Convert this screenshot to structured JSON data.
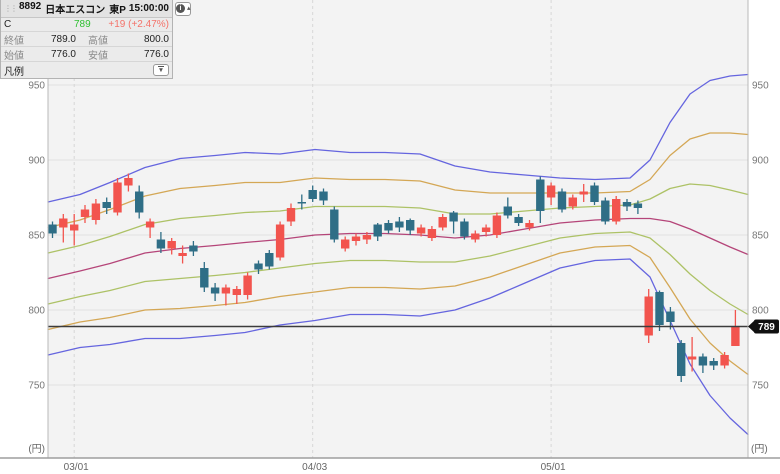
{
  "panel": {
    "drag_handle_icon": "⋮⋮",
    "code": "8892",
    "name": "日本エスコン",
    "market": "東P",
    "time": "15:00:00",
    "info_icon": "i",
    "collapse_icon": "▴",
    "series_label": "C",
    "current_price_text": "789",
    "change_text": "+19 (+2.47%)",
    "quote_rows": [
      {
        "label1": "終値",
        "value1": "789.0",
        "label2": "高値",
        "value2": "800.0"
      },
      {
        "label1": "始値",
        "value1": "776.0",
        "label2": "安値",
        "value2": "776.0"
      }
    ],
    "legend_label": "凡例",
    "legend_expand_icon": "▼"
  },
  "colors": {
    "up_candle": "#f2544e",
    "down_candle": "#2f6e86",
    "band_outer": "#5d5ddd",
    "band_mid": "#d2a24c",
    "band_inner": "#a9bf5e",
    "band_center": "#b13b72",
    "price_green": "#2fc032",
    "change_red": "#f4736a",
    "price_line": "#3c3c3c",
    "badge_bg": "#111111",
    "badge_text": "#ffffff",
    "plot_bg": "#f3f3f3",
    "grid": "#e0e0e0"
  },
  "chart_data": {
    "type": "candlestick",
    "overlay": "bollinger-bands +3/+2/+1/-1/-2/-3 sigma with center SMA",
    "y_unit": "(円)",
    "y_ticks": [
      950,
      900,
      850,
      800,
      750
    ],
    "ylim": [
      710,
      965
    ],
    "x_ticks": [
      {
        "index": 2,
        "label": "03/01"
      },
      {
        "index": 24,
        "label": "04/03"
      },
      {
        "index": 46,
        "label": "05/01"
      }
    ],
    "current_price": 789,
    "candle_format": "open,high,low,close",
    "candles_ohlc": [
      [
        857,
        859,
        848,
        851
      ],
      [
        855,
        864,
        845,
        861
      ],
      [
        853,
        864,
        843,
        857
      ],
      [
        862,
        870,
        858,
        867
      ],
      [
        860,
        874,
        857,
        871
      ],
      [
        872,
        875,
        864,
        868
      ],
      [
        865,
        888,
        863,
        885
      ],
      [
        883,
        891,
        879,
        888
      ],
      [
        879,
        883,
        861,
        865
      ],
      [
        855,
        861,
        848,
        859
      ],
      [
        847,
        852,
        838,
        841
      ],
      [
        841,
        848,
        837,
        846
      ],
      [
        836,
        843,
        831,
        838
      ],
      [
        843,
        846,
        836,
        839
      ],
      [
        828,
        832,
        812,
        815
      ],
      [
        815,
        818,
        806,
        811
      ],
      [
        811,
        817,
        803,
        815
      ],
      [
        810,
        816,
        804,
        814
      ],
      [
        810,
        825,
        807,
        823
      ],
      [
        831,
        833,
        824,
        827
      ],
      [
        838,
        840,
        827,
        829
      ],
      [
        835,
        859,
        833,
        857
      ],
      [
        859,
        871,
        856,
        868
      ],
      [
        872,
        877,
        867,
        871
      ],
      [
        880,
        883,
        872,
        874
      ],
      [
        879,
        881,
        870,
        873
      ],
      [
        867,
        869,
        845,
        847
      ],
      [
        841,
        849,
        839,
        847
      ],
      [
        846,
        851,
        843,
        849
      ],
      [
        847,
        852,
        844,
        850
      ],
      [
        857,
        858,
        846,
        849
      ],
      [
        858,
        860,
        851,
        853
      ],
      [
        859,
        862,
        852,
        855
      ],
      [
        860,
        861,
        850,
        853
      ],
      [
        851,
        857,
        849,
        855
      ],
      [
        848,
        856,
        846,
        854
      ],
      [
        855,
        864,
        853,
        862
      ],
      [
        865,
        866,
        851,
        859
      ],
      [
        859,
        861,
        847,
        849
      ],
      [
        847,
        853,
        845,
        851
      ],
      [
        852,
        857,
        849,
        855
      ],
      [
        850,
        865,
        848,
        863
      ],
      [
        869,
        875,
        861,
        863
      ],
      [
        862,
        864,
        856,
        858
      ],
      [
        855,
        860,
        853,
        858
      ],
      [
        887,
        889,
        858,
        866
      ],
      [
        875,
        885,
        870,
        883
      ],
      [
        879,
        881,
        865,
        867
      ],
      [
        869,
        877,
        867,
        875
      ],
      [
        877,
        884,
        872,
        879
      ],
      [
        883,
        885,
        870,
        872
      ],
      [
        873,
        875,
        857,
        859
      ],
      [
        859,
        876,
        857,
        874
      ],
      [
        872,
        874,
        866,
        869
      ],
      [
        871,
        873,
        864,
        868
      ],
      [
        783,
        814,
        778,
        809
      ],
      [
        812,
        813,
        786,
        790
      ],
      [
        799,
        802,
        787,
        792
      ],
      [
        778,
        780,
        752,
        756
      ],
      [
        767,
        782,
        759,
        769
      ],
      [
        769,
        771,
        758,
        763
      ],
      [
        766,
        768,
        760,
        763
      ],
      [
        763,
        772,
        761,
        770
      ],
      [
        776,
        800,
        776,
        789
      ]
    ],
    "bollinger": {
      "multipliers": [
        3,
        2,
        1,
        -1,
        -2,
        -3,
        0
      ],
      "sample_format": "x_px,sma,sigma",
      "samples": [
        [
          0,
          821,
          17
        ],
        [
          32,
          826,
          17
        ],
        [
          62,
          831,
          18
        ],
        [
          97,
          838,
          19
        ],
        [
          132,
          841,
          20
        ],
        [
          167,
          843,
          20
        ],
        [
          197,
          845,
          20
        ],
        [
          232,
          847,
          19
        ],
        [
          267,
          850,
          19
        ],
        [
          302,
          851,
          18
        ],
        [
          337,
          851,
          18
        ],
        [
          372,
          850,
          18
        ],
        [
          407,
          848,
          16
        ],
        [
          442,
          850,
          14
        ],
        [
          477,
          854,
          12
        ],
        [
          512,
          858,
          10
        ],
        [
          547,
          860,
          9
        ],
        [
          582,
          861,
          9
        ],
        [
          602,
          861,
          13
        ],
        [
          622,
          859,
          22
        ],
        [
          642,
          854,
          30
        ],
        [
          662,
          848,
          35
        ],
        [
          682,
          842,
          38
        ],
        [
          700,
          837,
          40
        ]
      ]
    }
  }
}
